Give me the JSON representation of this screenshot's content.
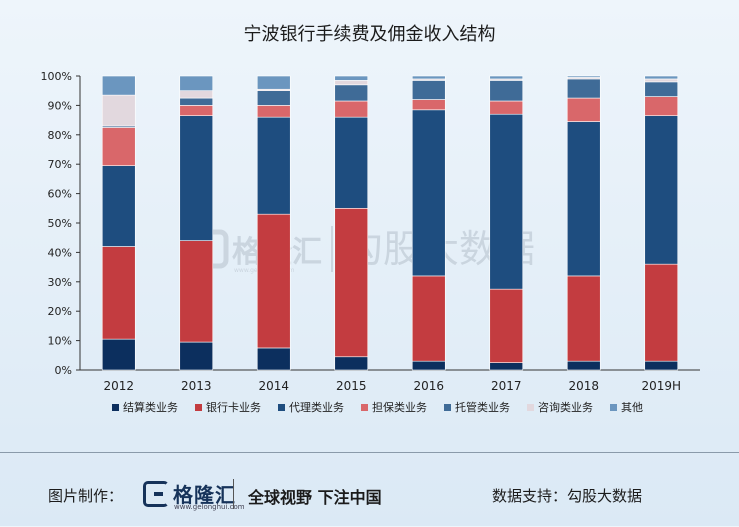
{
  "chart_data": {
    "type": "bar",
    "stacked": true,
    "title": "宁波银行手续费及佣金收入结构",
    "categories": [
      "2012",
      "2013",
      "2014",
      "2015",
      "2016",
      "2017",
      "2018",
      "2019H"
    ],
    "ylim": [
      0,
      100
    ],
    "yticks": [
      "0%",
      "10%",
      "20%",
      "30%",
      "40%",
      "50%",
      "60%",
      "70%",
      "80%",
      "90%",
      "100%"
    ],
    "grid": false,
    "legend_position": "bottom",
    "series": [
      {
        "name": "结算类业务",
        "color": "#0c2f5e",
        "values": [
          10.5,
          9.5,
          7.5,
          4.5,
          3.0,
          2.5,
          3.0,
          3.0
        ]
      },
      {
        "name": "银行卡业务",
        "color": "#c33c40",
        "values": [
          31.5,
          34.5,
          45.5,
          50.5,
          29.0,
          25.0,
          29.0,
          33.0
        ]
      },
      {
        "name": "代理类业务",
        "color": "#1e4d7f",
        "values": [
          27.5,
          42.5,
          33.0,
          31.0,
          56.5,
          59.5,
          52.5,
          50.5
        ]
      },
      {
        "name": "担保类业务",
        "color": "#d9676a",
        "values": [
          13.0,
          3.5,
          4.0,
          5.5,
          3.5,
          4.5,
          8.0,
          6.5
        ]
      },
      {
        "name": "托管类业务",
        "color": "#3f6b97",
        "values": [
          0.5,
          2.5,
          5.0,
          5.5,
          6.5,
          7.0,
          6.5,
          5.0
        ]
      },
      {
        "name": "咨询类业务",
        "color": "#e2d8de",
        "values": [
          10.5,
          2.5,
          0.5,
          1.5,
          0.5,
          0.5,
          0.5,
          1.0
        ]
      },
      {
        "name": "其他",
        "color": "#6b96bf",
        "values": [
          6.5,
          5.0,
          4.5,
          1.5,
          1.0,
          1.0,
          0.5,
          1.0
        ]
      }
    ]
  },
  "watermark": {
    "brand": "格隆汇",
    "url": "www.gelonghui.com",
    "partner": "勾股大数据"
  },
  "footer": {
    "credit_label": "图片制作：",
    "brand": "格隆汇",
    "url": "www.gelonghui.com",
    "slogan": "全球视野 下注中国",
    "support_label": "数据支持：勾股大数据"
  }
}
